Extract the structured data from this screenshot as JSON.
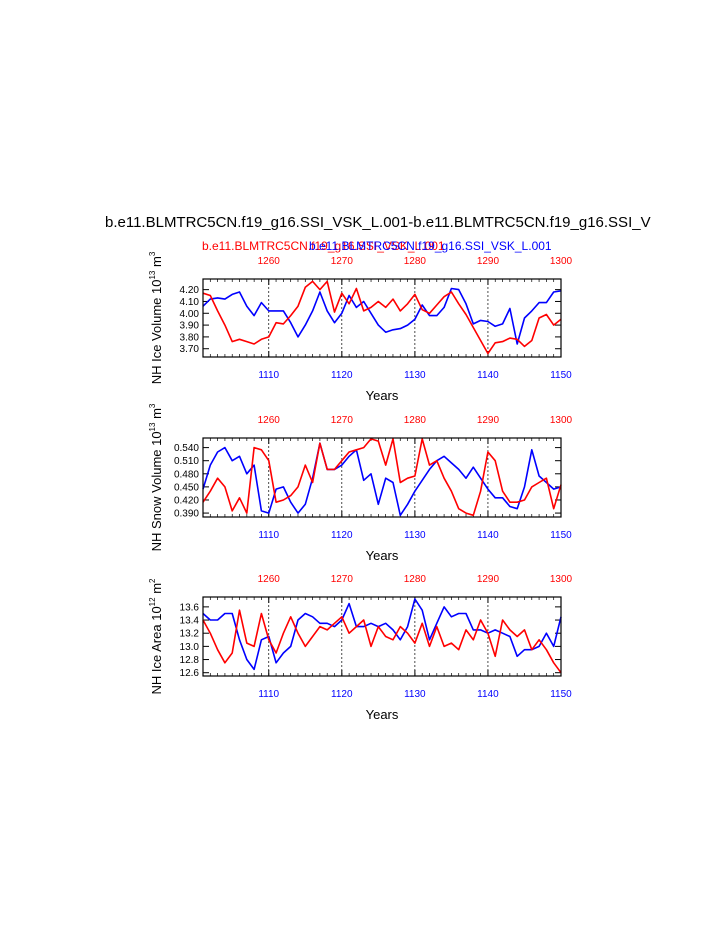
{
  "figure": {
    "title": "b.e11.BLMTRC5CN.f19_g16.SSI_VSK_L.001-b.e11.BLMTRC5CN.f19_g16.SSI_V",
    "subtitle_red": "b.e11.BLMTRC5CN.f19_g16.SSI_VSK_L.001",
    "subtitle_blue": "b.e11.BLMTRC5CN.f19_g16.SSI_VSK_L.001",
    "colors": {
      "red": "#ff0000",
      "blue": "#0000ff",
      "axis": "#000000",
      "grid": "#000000"
    }
  },
  "chart_data": [
    {
      "type": "line",
      "ylabel": "NH Ice Volume 10",
      "ylabel_sup": "13",
      "ylabel_unit": " m",
      "ylabel_unit_sup": "3",
      "xlabel": "Years",
      "ylim": [
        3.63,
        4.29
      ],
      "yticks": [
        "4.20",
        "4.10",
        "4.00",
        "3.90",
        "3.80",
        "3.70"
      ],
      "ytick_values": [
        4.2,
        4.1,
        4.0,
        3.9,
        3.8,
        3.7
      ],
      "x_bottom": {
        "range": [
          1101,
          1150
        ],
        "ticks": [
          1110,
          1120,
          1130,
          1140,
          1150
        ],
        "color": "#0000ff"
      },
      "x_top": {
        "range": [
          1251,
          1300
        ],
        "ticks": [
          1260,
          1270,
          1280,
          1290,
          1300
        ],
        "color": "#ff0000"
      },
      "series": [
        {
          "color": "#0000ff",
          "axis": "bottom",
          "x_start": 1101,
          "values": [
            4.06,
            4.12,
            4.13,
            4.12,
            4.16,
            4.18,
            4.06,
            3.98,
            4.09,
            4.02,
            4.02,
            4.02,
            3.92,
            3.8,
            3.9,
            4.02,
            4.18,
            4.02,
            3.92,
            4.0,
            4.15,
            4.05,
            4.1,
            4.0,
            3.9,
            3.84,
            3.86,
            3.87,
            3.9,
            3.95,
            4.07,
            3.98,
            3.98,
            4.05,
            4.21,
            4.2,
            4.08,
            3.91,
            3.94,
            3.93,
            3.89,
            3.91,
            4.04,
            3.74,
            3.96,
            4.02,
            4.09,
            4.09,
            4.18,
            4.19
          ]
        },
        {
          "color": "#ff0000",
          "axis": "top",
          "x_start": 1251,
          "values": [
            4.17,
            4.15,
            4.02,
            3.9,
            3.76,
            3.78,
            3.76,
            3.74,
            3.78,
            3.8,
            3.92,
            3.91,
            3.98,
            4.06,
            4.22,
            4.27,
            4.2,
            4.27,
            4.01,
            4.17,
            4.08,
            4.21,
            4.02,
            4.05,
            4.1,
            4.05,
            4.12,
            4.02,
            4.08,
            4.16,
            4.03,
            4.0,
            4.07,
            4.14,
            4.18,
            4.08,
            3.99,
            3.88,
            3.77,
            3.66,
            3.75,
            3.76,
            3.79,
            3.78,
            3.72,
            3.77,
            3.96,
            3.99,
            3.9,
            3.95
          ]
        }
      ]
    },
    {
      "type": "line",
      "ylabel": "NH Snow Volume 10",
      "ylabel_sup": "13",
      "ylabel_unit": " m",
      "ylabel_unit_sup": "3",
      "xlabel": "Years",
      "ylim": [
        0.381,
        0.562
      ],
      "yticks": [
        "0.540",
        "0.510",
        "0.480",
        "0.450",
        "0.420",
        "0.390"
      ],
      "ytick_values": [
        0.54,
        0.51,
        0.48,
        0.45,
        0.42,
        0.39
      ],
      "x_bottom": {
        "range": [
          1101,
          1150
        ],
        "ticks": [
          1110,
          1120,
          1130,
          1140,
          1150
        ],
        "color": "#0000ff"
      },
      "x_top": {
        "range": [
          1251,
          1300
        ],
        "ticks": [
          1260,
          1270,
          1280,
          1290,
          1300
        ],
        "color": "#ff0000"
      },
      "series": [
        {
          "color": "#0000ff",
          "axis": "bottom",
          "x_start": 1101,
          "values": [
            0.445,
            0.5,
            0.53,
            0.54,
            0.51,
            0.52,
            0.48,
            0.5,
            0.395,
            0.39,
            0.445,
            0.45,
            0.415,
            0.39,
            0.41,
            0.47,
            0.55,
            0.49,
            0.49,
            0.5,
            0.52,
            0.535,
            0.465,
            0.48,
            0.41,
            0.47,
            0.46,
            0.385,
            0.41,
            0.44,
            0.465,
            0.49,
            0.51,
            0.52,
            0.505,
            0.49,
            0.47,
            0.495,
            0.47,
            0.445,
            0.425,
            0.425,
            0.405,
            0.4,
            0.45,
            0.535,
            0.475,
            0.46,
            0.445,
            0.45
          ]
        },
        {
          "color": "#ff0000",
          "axis": "top",
          "x_start": 1251,
          "values": [
            0.415,
            0.44,
            0.47,
            0.45,
            0.395,
            0.425,
            0.39,
            0.54,
            0.535,
            0.51,
            0.415,
            0.42,
            0.43,
            0.45,
            0.5,
            0.46,
            0.55,
            0.49,
            0.49,
            0.51,
            0.53,
            0.535,
            0.54,
            0.56,
            0.555,
            0.5,
            0.56,
            0.46,
            0.47,
            0.475,
            0.56,
            0.5,
            0.51,
            0.47,
            0.44,
            0.4,
            0.39,
            0.385,
            0.44,
            0.53,
            0.51,
            0.44,
            0.415,
            0.415,
            0.42,
            0.45,
            0.46,
            0.47,
            0.4,
            0.455
          ]
        }
      ]
    },
    {
      "type": "line",
      "ylabel": "NH Ice Area 10",
      "ylabel_sup": "12",
      "ylabel_unit": " m",
      "ylabel_unit_sup": "2",
      "xlabel": "Years",
      "ylim": [
        12.55,
        13.75
      ],
      "yticks": [
        "13.6",
        "13.4",
        "13.2",
        "13.0",
        "12.8",
        "12.6"
      ],
      "ytick_values": [
        13.6,
        13.4,
        13.2,
        13.0,
        12.8,
        12.6
      ],
      "x_bottom": {
        "range": [
          1101,
          1150
        ],
        "ticks": [
          1110,
          1120,
          1130,
          1140,
          1150
        ],
        "color": "#0000ff"
      },
      "x_top": {
        "range": [
          1251,
          1300
        ],
        "ticks": [
          1260,
          1270,
          1280,
          1290,
          1300
        ],
        "color": "#ff0000"
      },
      "series": [
        {
          "color": "#0000ff",
          "axis": "bottom",
          "x_start": 1101,
          "values": [
            13.5,
            13.4,
            13.4,
            13.5,
            13.5,
            13.1,
            12.8,
            12.65,
            13.1,
            13.15,
            12.75,
            12.9,
            13.0,
            13.4,
            13.5,
            13.45,
            13.35,
            13.35,
            13.3,
            13.4,
            13.65,
            13.3,
            13.3,
            13.35,
            13.3,
            13.35,
            13.25,
            13.1,
            13.3,
            13.72,
            13.55,
            13.1,
            13.35,
            13.6,
            13.45,
            13.5,
            13.5,
            13.25,
            13.25,
            13.2,
            13.25,
            13.2,
            13.15,
            12.85,
            12.95,
            12.95,
            13.0,
            13.2,
            13.0,
            13.45
          ]
        },
        {
          "color": "#ff0000",
          "axis": "top",
          "x_start": 1251,
          "values": [
            13.4,
            13.2,
            12.95,
            12.75,
            12.9,
            13.55,
            13.05,
            13.0,
            13.5,
            13.1,
            12.9,
            13.2,
            13.45,
            13.2,
            13.0,
            13.15,
            13.3,
            13.25,
            13.35,
            13.45,
            13.2,
            13.3,
            13.4,
            13.0,
            13.3,
            13.15,
            13.1,
            13.3,
            13.2,
            13.05,
            13.35,
            13.0,
            13.3,
            13.0,
            13.05,
            12.95,
            13.25,
            13.1,
            13.4,
            13.2,
            12.85,
            13.4,
            13.25,
            13.15,
            13.25,
            12.95,
            13.1,
            12.95,
            12.75,
            12.6
          ]
        }
      ]
    }
  ]
}
